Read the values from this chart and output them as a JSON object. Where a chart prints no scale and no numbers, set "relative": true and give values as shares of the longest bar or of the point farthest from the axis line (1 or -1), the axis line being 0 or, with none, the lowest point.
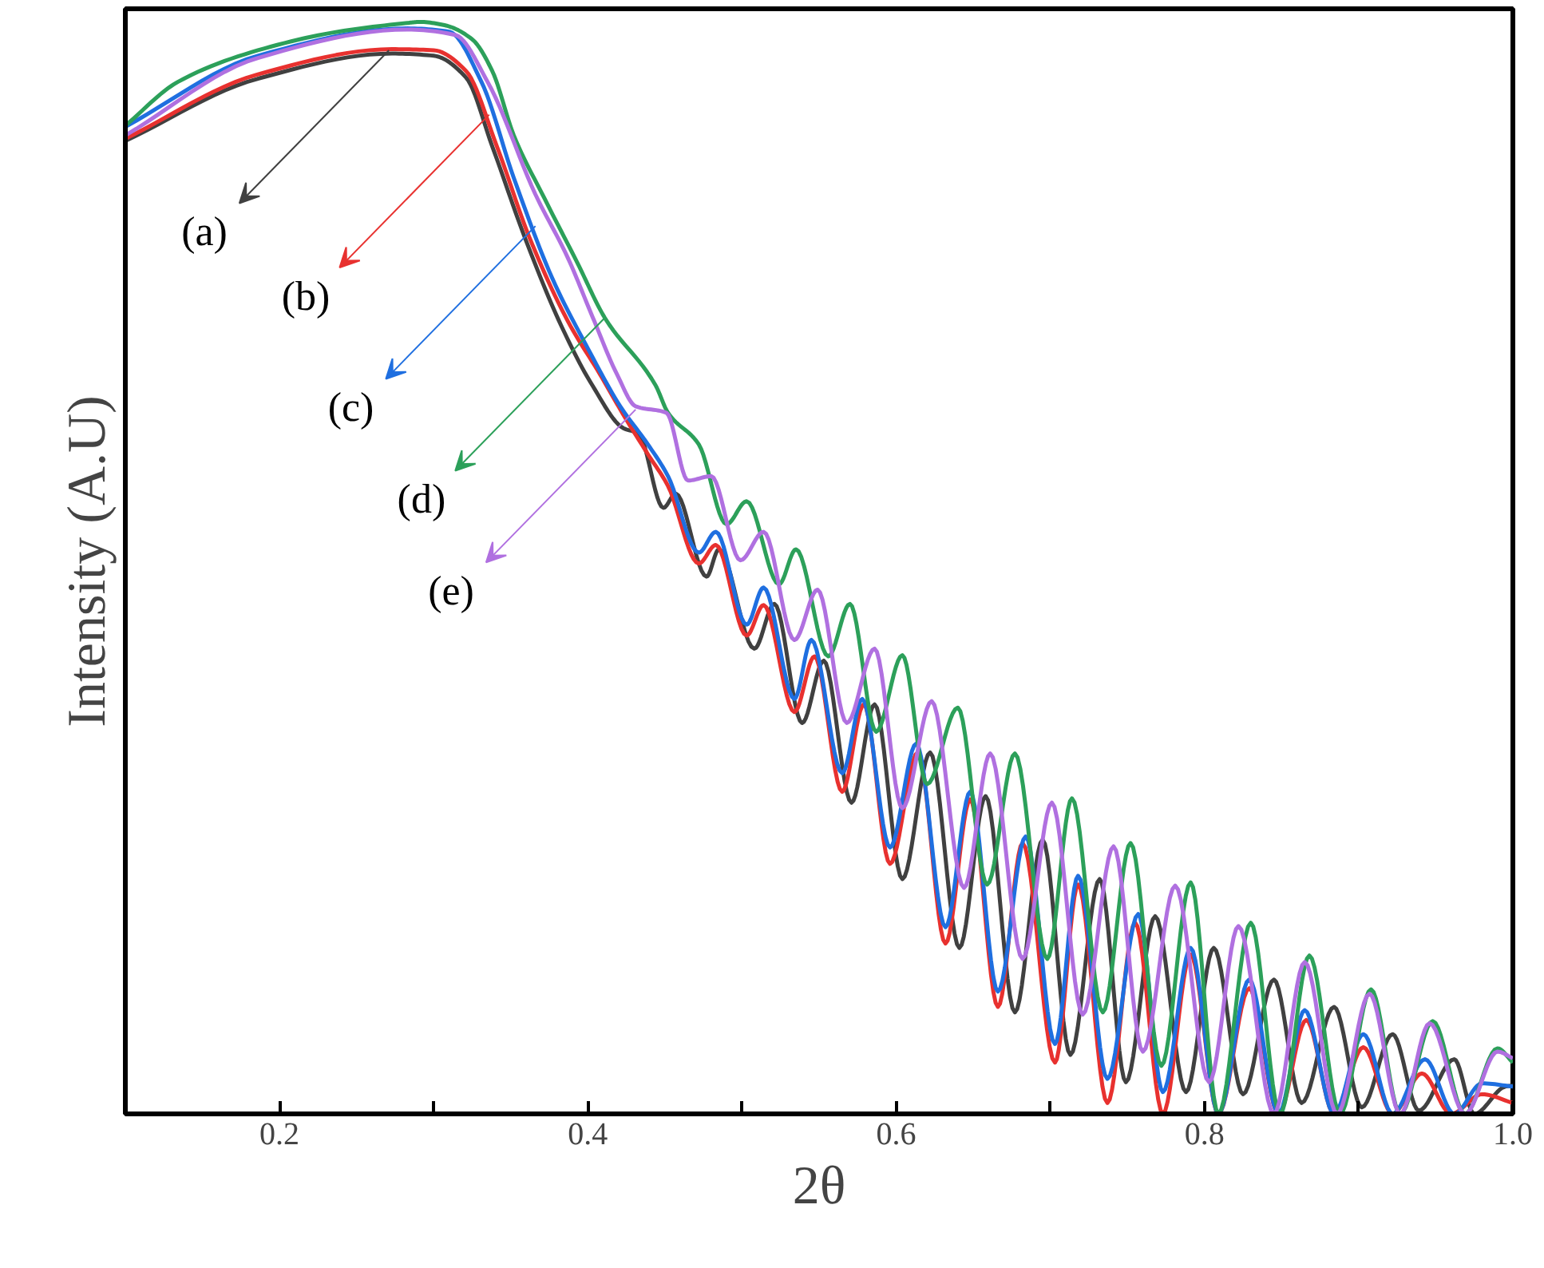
{
  "chart_data": {
    "type": "line",
    "xlabel": "2θ",
    "ylabel": "Intensity (A.U)",
    "relative": true,
    "tick_labels": "x",
    "xlim": [
      0.1,
      1.0
    ],
    "xticks": [
      0.2,
      {
        "value": 0.3,
        "label": null
      },
      0.4,
      {
        "value": 0.5,
        "label": null
      },
      0.6,
      {
        "value": 0.7,
        "label": null
      },
      0.8,
      {
        "value": 0.9,
        "label": null
      },
      {
        "value": 1.0,
        "label": "1.0"
      }
    ],
    "series": [
      {
        "color": "#404040",
        "x": [
          0.1,
          0.186,
          0.273,
          0.3,
          0.321,
          0.338,
          0.359,
          0.383,
          0.403,
          0.423,
          0.433,
          0.449,
          0.457,
          0.477,
          0.485,
          0.508,
          0.521,
          0.539,
          0.553,
          0.571,
          0.586,
          0.604,
          0.622,
          0.641,
          0.658,
          0.677,
          0.695,
          0.713,
          0.732,
          0.749,
          0.768,
          0.788,
          0.806,
          0.825,
          0.845,
          0.863,
          0.884,
          0.902,
          0.922,
          0.939,
          0.962,
          0.975,
          0.995,
          1.0
        ],
        "values": [
          0.891,
          0.948,
          0.971,
          0.969,
          0.949,
          0.886,
          0.803,
          0.721,
          0.667,
          0.628,
          0.623,
          0.555,
          0.568,
          0.492,
          0.517,
          0.426,
          0.467,
          0.358,
          0.415,
          0.285,
          0.375,
          0.215,
          0.331,
          0.152,
          0.291,
          0.093,
          0.251,
          0.054,
          0.215,
          0.029,
          0.181,
          0.02,
          0.152,
          0.018,
          0.123,
          0.01,
          0.098,
          0.006,
          0.073,
          0.003,
          0.05,
          0,
          0.025,
          0.026
        ]
      },
      {
        "color": "#e8312f",
        "x": [
          0.1,
          0.186,
          0.273,
          0.3,
          0.321,
          0.341,
          0.362,
          0.387,
          0.408,
          0.424,
          0.439,
          0.452,
          0.472,
          0.483,
          0.503,
          0.514,
          0.534,
          0.547,
          0.565,
          0.579,
          0.596,
          0.614,
          0.632,
          0.648,
          0.666,
          0.682,
          0.703,
          0.718,
          0.737,
          0.755,
          0.773,
          0.791,
          0.809,
          0.829,
          0.848,
          0.866,
          0.884,
          0.903,
          0.922,
          0.941,
          0.96,
          0.98,
          1.0
        ],
        "values": [
          0.893,
          0.952,
          0.975,
          0.974,
          0.955,
          0.886,
          0.803,
          0.726,
          0.677,
          0.638,
          0.604,
          0.575,
          0.504,
          0.521,
          0.438,
          0.466,
          0.368,
          0.419,
          0.295,
          0.375,
          0.229,
          0.331,
          0.156,
          0.288,
          0.098,
          0.248,
          0.047,
          0.21,
          0.01,
          0.175,
          0,
          0.146,
          0,
          0.115,
          0,
          0.086,
          0,
          0.061,
          0,
          0.037,
          0,
          0.018,
          0.01
        ]
      },
      {
        "color": "#1f6fe0",
        "x": [
          0.1,
          0.186,
          0.283,
          0.31,
          0.331,
          0.352,
          0.377,
          0.4,
          0.421,
          0.439,
          0.452,
          0.472,
          0.483,
          0.503,
          0.514,
          0.534,
          0.545,
          0.565,
          0.578,
          0.596,
          0.613,
          0.632,
          0.648,
          0.666,
          0.684,
          0.703,
          0.718,
          0.737,
          0.757,
          0.773,
          0.791,
          0.809,
          0.829,
          0.848,
          0.865,
          0.884,
          0.903,
          0.922,
          0.943,
          0.962,
          0.98,
          1.0
        ],
        "values": [
          0.904,
          0.969,
          0.994,
          0.991,
          0.945,
          0.857,
          0.765,
          0.701,
          0.648,
          0.613,
          0.584,
          0.514,
          0.533,
          0.448,
          0.482,
          0.38,
          0.434,
          0.312,
          0.38,
          0.244,
          0.339,
          0.171,
          0.295,
          0.112,
          0.254,
          0.064,
          0.218,
          0.032,
          0.183,
          0.02,
          0.152,
          0,
          0.123,
          0,
          0.095,
          0,
          0.073,
          0,
          0.05,
          0,
          0.028,
          0.025
        ]
      },
      {
        "color": "#2ca05a",
        "x": [
          0.1,
          0.134,
          0.186,
          0.238,
          0.283,
          0.291,
          0.307,
          0.325,
          0.338,
          0.352,
          0.372,
          0.393,
          0.411,
          0.444,
          0.452,
          0.472,
          0.49,
          0.503,
          0.524,
          0.535,
          0.556,
          0.57,
          0.587,
          0.604,
          0.62,
          0.64,
          0.659,
          0.677,
          0.698,
          0.714,
          0.734,
          0.752,
          0.772,
          0.791,
          0.809,
          0.83,
          0.849,
          0.868,
          0.888,
          0.908,
          0.927,
          0.948,
          0.969,
          0.99,
          1.0
        ],
        "values": [
          0.905,
          0.945,
          0.974,
          0.991,
          0.999,
          1.0,
          0.997,
          0.984,
          0.955,
          0.896,
          0.838,
          0.78,
          0.729,
          0.667,
          0.642,
          0.613,
          0.54,
          0.561,
          0.485,
          0.517,
          0.419,
          0.467,
          0.35,
          0.42,
          0.302,
          0.372,
          0.21,
          0.33,
          0.142,
          0.289,
          0.093,
          0.248,
          0.044,
          0.212,
          0,
          0.175,
          0,
          0.145,
          0,
          0.114,
          0,
          0.085,
          0,
          0.06,
          0.047
        ]
      },
      {
        "color": "#b070e0",
        "x": [
          0.1,
          0.186,
          0.283,
          0.314,
          0.335,
          0.366,
          0.387,
          0.403,
          0.419,
          0.431,
          0.451,
          0.465,
          0.48,
          0.499,
          0.514,
          0.534,
          0.549,
          0.568,
          0.586,
          0.604,
          0.623,
          0.644,
          0.661,
          0.682,
          0.701,
          0.721,
          0.741,
          0.76,
          0.781,
          0.803,
          0.822,
          0.845,
          0.865,
          0.886,
          0.907,
          0.927,
          0.946,
          0.969,
          0.99,
          1.0
        ],
        "values": [
          0.896,
          0.967,
          0.993,
          0.988,
          0.945,
          0.842,
          0.784,
          0.73,
          0.677,
          0.648,
          0.642,
          0.58,
          0.584,
          0.507,
          0.533,
          0.434,
          0.48,
          0.358,
          0.426,
          0.28,
          0.378,
          0.207,
          0.33,
          0.142,
          0.285,
          0.091,
          0.245,
          0.057,
          0.209,
          0.029,
          0.172,
          0,
          0.139,
          0,
          0.11,
          0,
          0.083,
          0,
          0.057,
          0.051
        ]
      }
    ],
    "annotations": [
      {
        "text": "(a)",
        "x": 0.271,
        "y": 0.974
      },
      {
        "text": "(b)",
        "x": 0.336,
        "y": 0.915
      },
      {
        "text": "(c)",
        "x": 0.366,
        "y": 0.813
      },
      {
        "text": "(d)",
        "x": 0.411,
        "y": 0.729
      },
      {
        "text": "(e)",
        "x": 0.431,
        "y": 0.645
      }
    ]
  }
}
